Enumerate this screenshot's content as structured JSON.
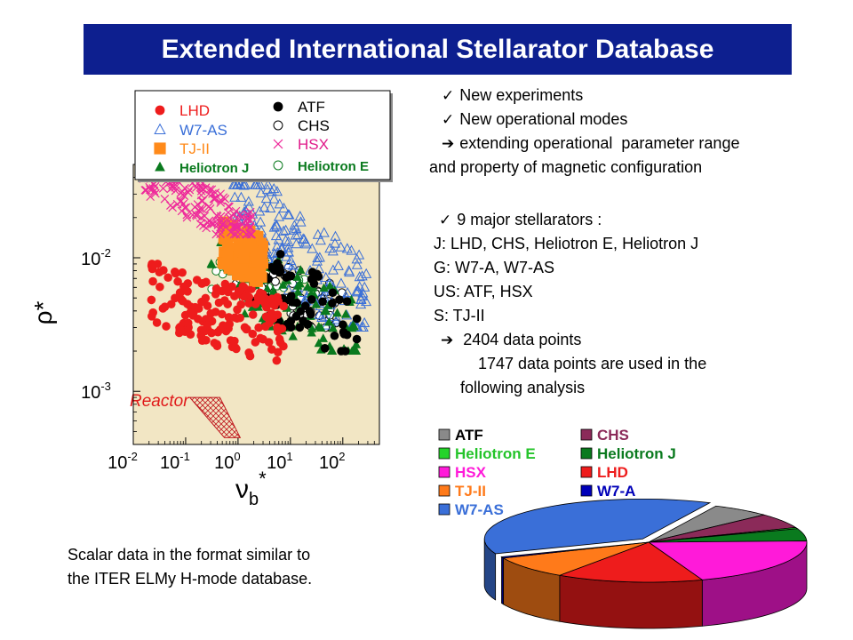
{
  "title": "Extended International Stellarator Database",
  "bullets_top": [
    {
      "mark": "✓",
      "text": "New experiments"
    },
    {
      "mark": "✓",
      "text": "New operational modes"
    },
    {
      "mark": "➔",
      "text": "extending operational  parameter range"
    },
    {
      "mark": "",
      "text": "and property of magnetic configuration"
    }
  ],
  "bullets_mid": [
    {
      "mark": "✓",
      "text": "9 major stellarators :"
    },
    {
      "mark": "",
      "text": "J: LHD, CHS, Heliotron E, Heliotron J"
    },
    {
      "mark": "",
      "text": "G: W7-A, W7-AS"
    },
    {
      "mark": "",
      "text": "US: ATF, HSX"
    },
    {
      "mark": "",
      "text": "S: TJ-II"
    },
    {
      "mark": "➔",
      "text": " 2404 data points"
    },
    {
      "mark": "",
      "text": "    1747 data points are used in the"
    },
    {
      "mark": "",
      "text": "following analysis"
    }
  ],
  "bottom_note": [
    "Scalar data in the format similar to",
    "the ITER ELMy H-mode database."
  ],
  "chart_data": [
    {
      "type": "scatter",
      "xlabel": "ν",
      "xlabel_sub": "b",
      "xlabel_sup": "*",
      "ylabel": "ρ*",
      "x_scale": "log",
      "y_scale": "log",
      "xlim": [
        0.01,
        500
      ],
      "ylim": [
        0.0004,
        0.05
      ],
      "x_ticks": [
        0.01,
        0.1,
        1,
        10,
        100
      ],
      "x_tick_labels": [
        {
          "base": "10",
          "exp": "-2"
        },
        {
          "base": "10",
          "exp": "-1"
        },
        {
          "base": "10",
          "exp": "0"
        },
        {
          "base": "10",
          "exp": "1"
        },
        {
          "base": "10",
          "exp": "2"
        }
      ],
      "y_ticks": [
        0.001,
        0.01
      ],
      "y_tick_labels": [
        {
          "base": "10",
          "exp": "-3"
        },
        {
          "base": "10",
          "exp": "-2"
        }
      ],
      "annotation": "Reactor",
      "reactor_region": [
        [
          0.12,
          0.0009
        ],
        [
          0.45,
          0.0009
        ],
        [
          1.1,
          0.00045
        ],
        [
          0.55,
          0.00045
        ]
      ],
      "background": "#f2e6c4",
      "legend_position": "top",
      "series": [
        {
          "name": "LHD",
          "marker": "filled-circle",
          "color": "#ee1c1c",
          "x_range": [
            0.02,
            8
          ],
          "y_range": [
            0.0017,
            0.009
          ]
        },
        {
          "name": "W7-AS",
          "marker": "open-triangle",
          "color": "#3a6fd8",
          "x_range": [
            0.8,
            300
          ],
          "y_range": [
            0.003,
            0.035
          ]
        },
        {
          "name": "TJ-II",
          "marker": "filled-square",
          "color": "#ff8a1a",
          "x_range": [
            0.5,
            3
          ],
          "y_range": [
            0.006,
            0.02
          ]
        },
        {
          "name": "Heliotron J",
          "marker": "filled-triangle",
          "color": "#0a7a1e",
          "x_range": [
            0.3,
            200
          ],
          "y_range": [
            0.002,
            0.013
          ]
        },
        {
          "name": "ATF",
          "marker": "filled-circle",
          "color": "#000000",
          "x_range": [
            1,
            200
          ],
          "y_range": [
            0.002,
            0.012
          ]
        },
        {
          "name": "CHS",
          "marker": "open-circle",
          "color": "#000000",
          "x_range": [
            0.6,
            100
          ],
          "y_range": [
            0.003,
            0.012
          ]
        },
        {
          "name": "HSX",
          "marker": "cross",
          "color": "#ee2a9b",
          "x_range": [
            0.015,
            2
          ],
          "y_range": [
            0.015,
            0.045
          ]
        },
        {
          "name": "Heliotron E",
          "marker": "open-circle",
          "color": "#0a7a1e",
          "x_range": [
            0.3,
            20
          ],
          "y_range": [
            0.004,
            0.01
          ]
        }
      ]
    },
    {
      "type": "pie",
      "style": "3d",
      "legend_position": "top",
      "categories": [
        "ATF",
        "CHS",
        "Heliotron E",
        "Heliotron J",
        "HSX",
        "LHD",
        "TJ-II",
        "W7-A",
        "W7-AS"
      ],
      "values": [
        6,
        6,
        0.5,
        5,
        20,
        15,
        9,
        0.5,
        38
      ],
      "colors": [
        "#8a8a8a",
        "#8b2a59",
        "#24d42a",
        "#0a7a1e",
        "#ff1ad9",
        "#ee1c1c",
        "#ff7a1a",
        "#0000b8",
        "#3a6fd8"
      ],
      "legend_text_colors": [
        "#000000",
        "#8b2a59",
        "#24c42a",
        "#0a7a1e",
        "#ff1ad9",
        "#ee1c1c",
        "#ff7a1a",
        "#0000b8",
        "#3a6fd8"
      ]
    }
  ]
}
